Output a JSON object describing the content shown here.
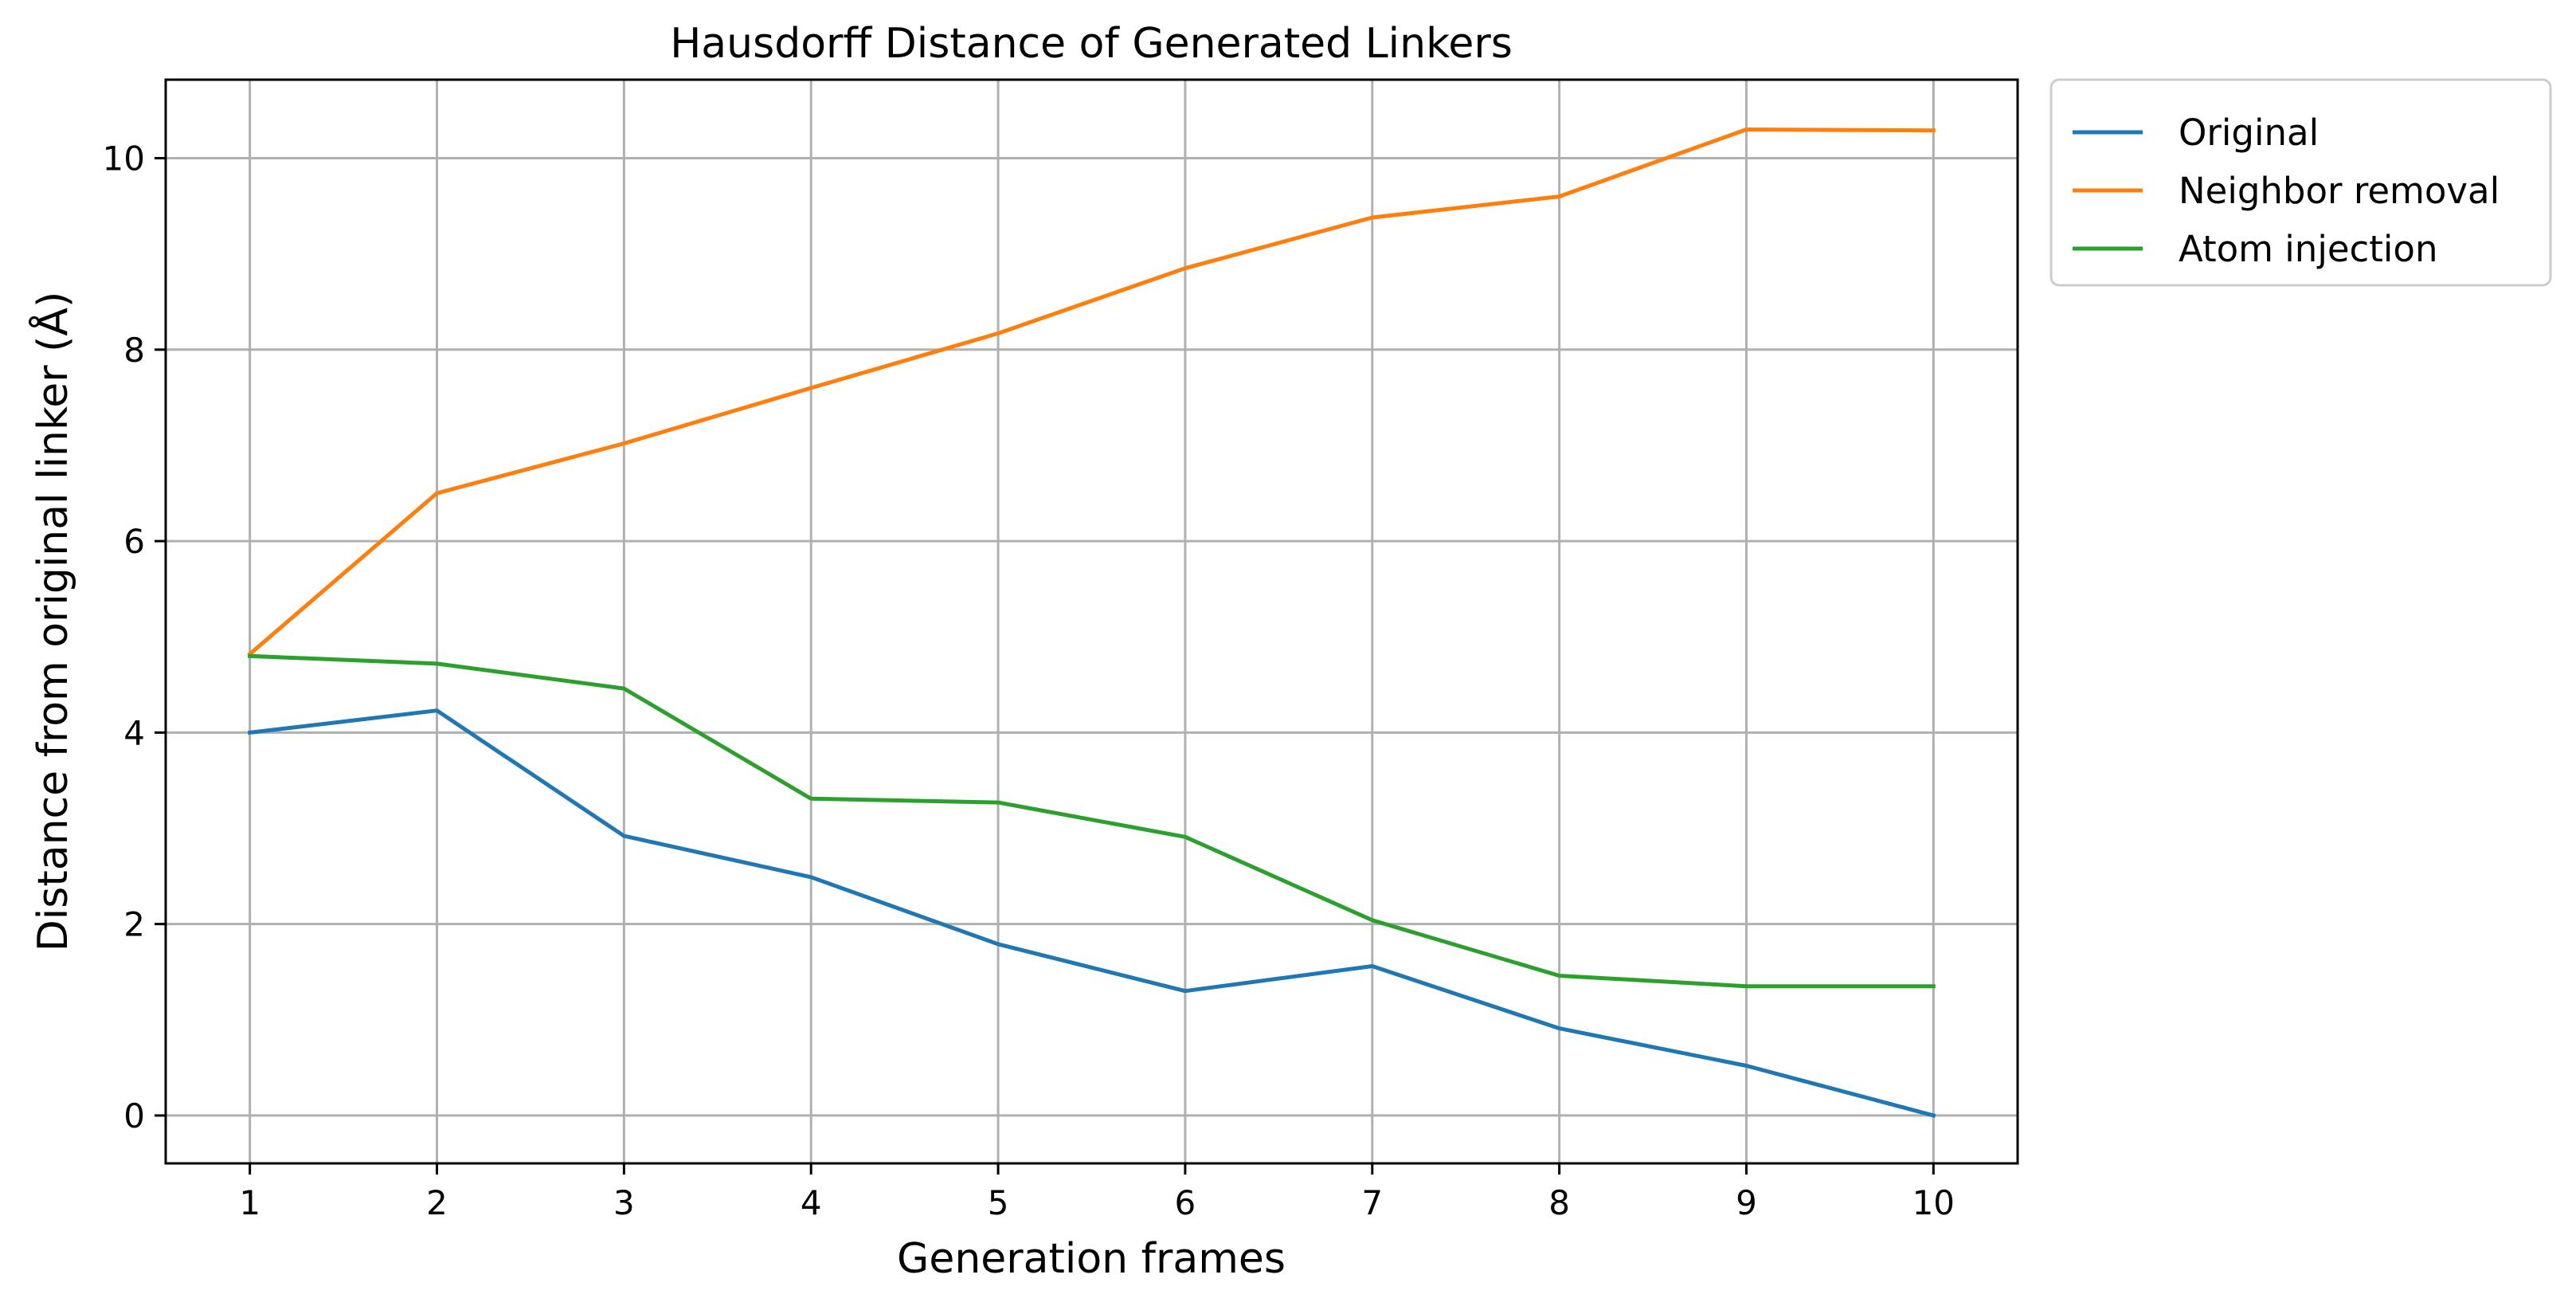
{
  "chart_data": {
    "type": "line",
    "title": "Hausdorff Distance of Generated Linkers",
    "xlabel": "Generation frames",
    "ylabel": "Distance from original linker (Å)",
    "x": [
      1,
      2,
      3,
      4,
      5,
      6,
      7,
      8,
      9,
      10
    ],
    "xticks": [
      1,
      2,
      3,
      4,
      5,
      6,
      7,
      8,
      9,
      10
    ],
    "yticks": [
      0,
      2,
      4,
      6,
      8,
      10
    ],
    "xlim": [
      0.55,
      10.45
    ],
    "ylim": [
      -0.5,
      10.82
    ],
    "grid": true,
    "legend_position": "outside-top-right",
    "series": [
      {
        "name": "Original",
        "color": "#1f77b4",
        "values": [
          4.0,
          4.23,
          2.92,
          2.49,
          1.79,
          1.3,
          1.56,
          0.91,
          0.52,
          0.0
        ]
      },
      {
        "name": "Neighbor removal",
        "color": "#ff7f0e",
        "values": [
          4.82,
          6.5,
          7.02,
          7.6,
          8.17,
          8.85,
          9.38,
          9.6,
          10.3,
          10.29
        ]
      },
      {
        "name": "Atom injection",
        "color": "#2ca02c",
        "values": [
          4.8,
          4.72,
          4.46,
          3.31,
          3.27,
          2.91,
          2.04,
          1.46,
          1.35,
          1.35
        ]
      }
    ]
  }
}
